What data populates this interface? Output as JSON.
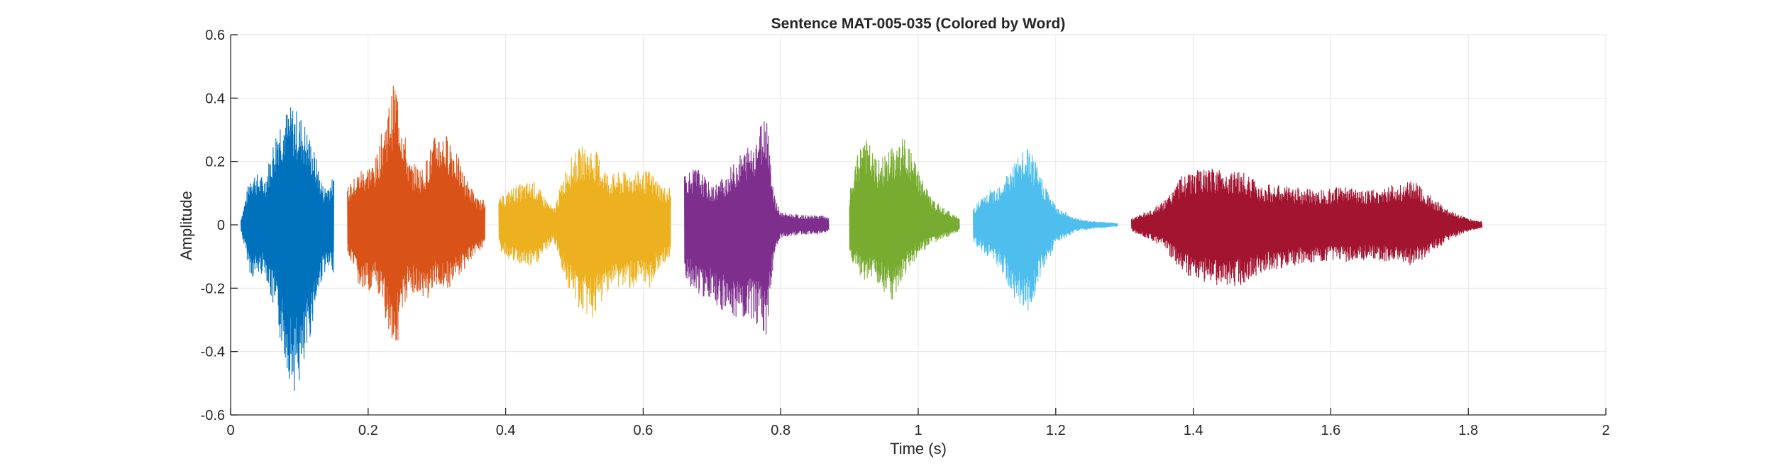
{
  "chart_data": {
    "type": "line",
    "title": "Sentence MAT-005-035 (Colored by Word)",
    "xlabel": "Time (s)",
    "ylabel": "Amplitude",
    "xlim": [
      0,
      2
    ],
    "ylim": [
      -0.6,
      0.6
    ],
    "grid": true,
    "xticks": [
      0,
      0.2,
      0.4,
      0.6,
      0.8,
      1,
      1.2,
      1.4,
      1.6,
      1.8,
      2
    ],
    "xtick_labels": [
      "0",
      "0.2",
      "0.4",
      "0.6",
      "0.8",
      "1",
      "1.2",
      "1.4",
      "1.6",
      "1.8",
      "2"
    ],
    "yticks": [
      -0.6,
      -0.4,
      -0.2,
      0,
      0.2,
      0.4,
      0.6
    ],
    "ytick_labels": [
      "-0.6",
      "-0.4",
      "-0.2",
      "0",
      "0.2",
      "0.4",
      "0.6"
    ],
    "series": [
      {
        "color": "#0072BD",
        "start": 0.015,
        "end": 0.15,
        "envelope_t": [
          0.015,
          0.03,
          0.05,
          0.07,
          0.09,
          0.105,
          0.12,
          0.135,
          0.15
        ],
        "envelope_max": [
          0.02,
          0.17,
          0.15,
          0.34,
          0.38,
          0.34,
          0.25,
          0.12,
          0.15
        ],
        "envelope_min": [
          -0.02,
          -0.17,
          -0.15,
          -0.35,
          -0.53,
          -0.5,
          -0.3,
          -0.15,
          -0.15
        ]
      },
      {
        "color": "#D95319",
        "start": 0.17,
        "end": 0.37,
        "envelope_t": [
          0.17,
          0.19,
          0.21,
          0.225,
          0.24,
          0.26,
          0.28,
          0.3,
          0.32,
          0.34,
          0.36,
          0.37
        ],
        "envelope_max": [
          0.12,
          0.18,
          0.2,
          0.34,
          0.47,
          0.2,
          0.18,
          0.3,
          0.28,
          0.16,
          0.08,
          0.08
        ],
        "envelope_min": [
          -0.1,
          -0.22,
          -0.2,
          -0.3,
          -0.4,
          -0.2,
          -0.25,
          -0.2,
          -0.2,
          -0.14,
          -0.08,
          -0.08
        ]
      },
      {
        "color": "#EDB120",
        "start": 0.39,
        "end": 0.64,
        "envelope_t": [
          0.39,
          0.41,
          0.44,
          0.47,
          0.49,
          0.51,
          0.53,
          0.55,
          0.58,
          0.61,
          0.63,
          0.64
        ],
        "envelope_max": [
          0.08,
          0.12,
          0.14,
          0.05,
          0.2,
          0.25,
          0.24,
          0.16,
          0.17,
          0.17,
          0.12,
          0.12
        ],
        "envelope_min": [
          -0.08,
          -0.12,
          -0.14,
          -0.05,
          -0.2,
          -0.28,
          -0.3,
          -0.2,
          -0.2,
          -0.2,
          -0.12,
          -0.12
        ]
      },
      {
        "color": "#7E2F8E",
        "start": 0.66,
        "end": 0.87,
        "envelope_t": [
          0.66,
          0.68,
          0.7,
          0.72,
          0.74,
          0.76,
          0.78,
          0.79,
          0.8,
          0.83,
          0.86,
          0.87
        ],
        "envelope_max": [
          0.17,
          0.18,
          0.12,
          0.16,
          0.22,
          0.27,
          0.37,
          0.1,
          0.04,
          0.03,
          0.03,
          0.02
        ],
        "envelope_min": [
          -0.17,
          -0.22,
          -0.25,
          -0.28,
          -0.32,
          -0.3,
          -0.35,
          -0.1,
          -0.04,
          -0.03,
          -0.03,
          -0.02
        ]
      },
      {
        "color": "#77AC30",
        "start": 0.9,
        "end": 1.06,
        "envelope_t": [
          0.9,
          0.92,
          0.94,
          0.96,
          0.98,
          1.0,
          1.02,
          1.04,
          1.06
        ],
        "envelope_max": [
          0.1,
          0.3,
          0.2,
          0.24,
          0.28,
          0.18,
          0.08,
          0.05,
          0.02
        ],
        "envelope_min": [
          -0.1,
          -0.18,
          -0.18,
          -0.25,
          -0.16,
          -0.1,
          -0.06,
          -0.04,
          -0.02
        ]
      },
      {
        "color": "#4DBEEE",
        "start": 1.08,
        "end": 1.29,
        "envelope_t": [
          1.08,
          1.1,
          1.12,
          1.14,
          1.16,
          1.18,
          1.2,
          1.23,
          1.26,
          1.29
        ],
        "envelope_max": [
          0.06,
          0.1,
          0.14,
          0.2,
          0.25,
          0.15,
          0.06,
          0.02,
          0.01,
          0.005
        ],
        "envelope_min": [
          -0.06,
          -0.1,
          -0.14,
          -0.25,
          -0.28,
          -0.16,
          -0.06,
          -0.02,
          -0.01,
          -0.005
        ]
      },
      {
        "color": "#A2142F",
        "start": 1.31,
        "end": 1.82,
        "envelope_t": [
          1.31,
          1.34,
          1.36,
          1.38,
          1.4,
          1.44,
          1.47,
          1.5,
          1.54,
          1.58,
          1.62,
          1.66,
          1.7,
          1.72,
          1.74,
          1.77,
          1.8,
          1.82
        ],
        "envelope_max": [
          0.02,
          0.05,
          0.08,
          0.15,
          0.17,
          0.18,
          0.17,
          0.13,
          0.12,
          0.11,
          0.12,
          0.11,
          0.13,
          0.14,
          0.1,
          0.05,
          0.02,
          0.01
        ],
        "envelope_min": [
          -0.02,
          -0.05,
          -0.08,
          -0.14,
          -0.17,
          -0.2,
          -0.19,
          -0.15,
          -0.13,
          -0.12,
          -0.12,
          -0.11,
          -0.12,
          -0.13,
          -0.1,
          -0.05,
          -0.02,
          -0.01
        ]
      }
    ]
  }
}
